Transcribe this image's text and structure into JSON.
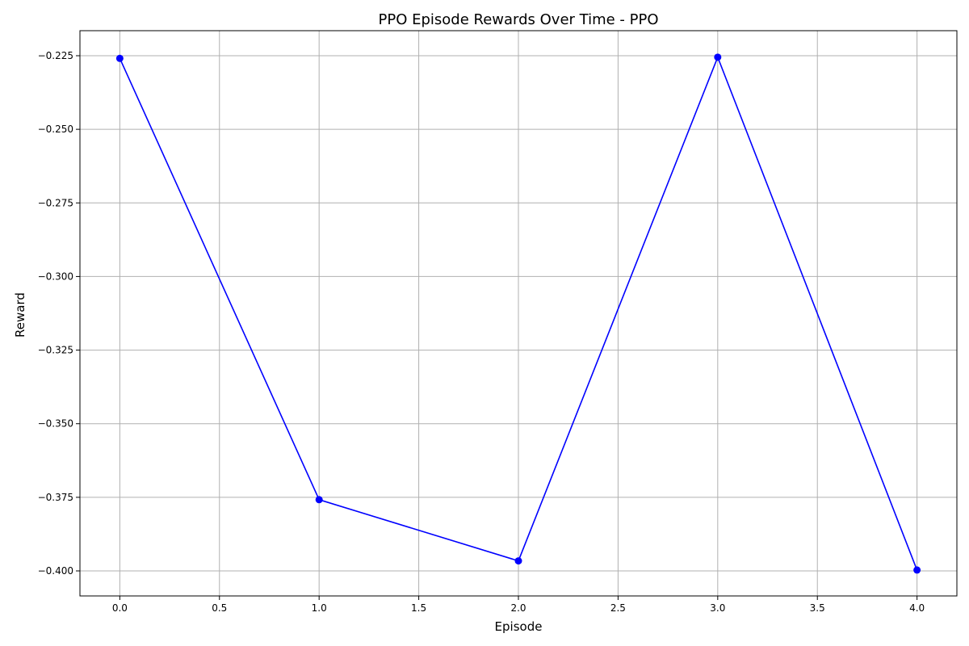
{
  "chart_data": {
    "type": "line",
    "title": "PPO Episode Rewards Over Time - PPO",
    "xlabel": "Episode",
    "ylabel": "Reward",
    "xlim": [
      -0.2,
      4.2
    ],
    "ylim": [
      -0.4085,
      -0.2165
    ],
    "x_ticks": [
      0.0,
      0.5,
      1.0,
      1.5,
      2.0,
      2.5,
      3.0,
      3.5,
      4.0
    ],
    "x_tick_labels": [
      "0.0",
      "0.5",
      "1.0",
      "1.5",
      "2.0",
      "2.5",
      "3.0",
      "3.5",
      "4.0"
    ],
    "y_ticks": [
      -0.225,
      -0.25,
      -0.275,
      -0.3,
      -0.325,
      -0.35,
      -0.375,
      -0.4
    ],
    "y_tick_labels": [
      "−0.225",
      "−0.250",
      "−0.275",
      "−0.300",
      "−0.325",
      "−0.350",
      "−0.375",
      "−0.400"
    ],
    "grid": true,
    "series": [
      {
        "color": "#0000ff",
        "marker": "circle",
        "x": [
          0,
          1,
          2,
          3,
          4
        ],
        "values": [
          -0.2259,
          -0.3758,
          -0.3966,
          -0.2255,
          -0.3997
        ]
      }
    ]
  }
}
